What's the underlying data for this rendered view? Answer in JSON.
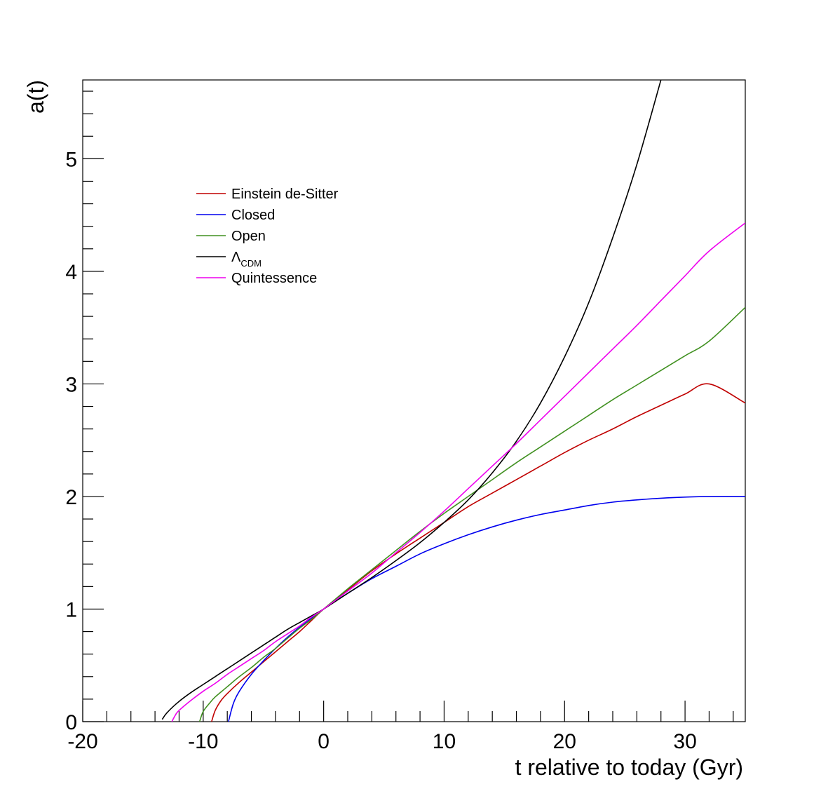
{
  "chart_data": {
    "type": "line",
    "xlabel": "t relative to today (Gyr)",
    "ylabel": "a(t)",
    "xlim": [
      -20,
      35
    ],
    "ylim": [
      0,
      5.7
    ],
    "x_ticks": [
      -20,
      -10,
      0,
      10,
      20,
      30
    ],
    "x_tick_labels": [
      "-20",
      "-10",
      "0",
      "10",
      "20",
      "30"
    ],
    "y_ticks": [
      0,
      1,
      2,
      3,
      4,
      5
    ],
    "y_tick_labels": [
      "0",
      "1",
      "2",
      "3",
      "4",
      "5"
    ],
    "grid": false,
    "legend_position": "top-left",
    "series": [
      {
        "name": "Einstein de-Sitter",
        "color": "#c00000",
        "x": [
          -9.3,
          -9.0,
          -8.5,
          -8.0,
          -7.0,
          -6.0,
          -5.0,
          -4.0,
          -3.0,
          -2.0,
          -1.0,
          0,
          2,
          4,
          6,
          8,
          10,
          12,
          14,
          16,
          18,
          20,
          22,
          24,
          26,
          28,
          30,
          32,
          35
        ],
        "y": [
          0.0,
          0.1,
          0.19,
          0.25,
          0.35,
          0.44,
          0.53,
          0.62,
          0.71,
          0.8,
          0.9,
          1.0,
          1.17,
          1.34,
          1.49,
          1.63,
          1.77,
          1.91,
          2.03,
          2.15,
          2.27,
          2.39,
          2.5,
          2.6,
          2.71,
          2.81,
          2.91,
          3.0,
          2.83
        ]
      },
      {
        "name": "Closed",
        "color": "#0000ee",
        "x": [
          -7.9,
          -7.5,
          -7.0,
          -6.0,
          -5.0,
          -4.0,
          -3.0,
          -2.0,
          -1.0,
          0,
          2,
          4,
          6,
          8,
          10,
          12,
          14,
          16,
          18,
          20,
          22,
          24,
          26,
          28,
          30,
          32,
          35
        ],
        "y": [
          0.0,
          0.16,
          0.27,
          0.42,
          0.54,
          0.65,
          0.75,
          0.84,
          0.92,
          1.0,
          1.14,
          1.27,
          1.38,
          1.49,
          1.58,
          1.66,
          1.73,
          1.79,
          1.84,
          1.88,
          1.92,
          1.95,
          1.97,
          1.985,
          1.995,
          2.0,
          2.0
        ]
      },
      {
        "name": "Open",
        "color": "#409020",
        "x": [
          -10.3,
          -10.0,
          -9.5,
          -9.0,
          -8.0,
          -7.0,
          -6.0,
          -5.0,
          -4.0,
          -3.0,
          -2.0,
          -1.0,
          0,
          2,
          4,
          6,
          8,
          10,
          12,
          14,
          16,
          18,
          20,
          22,
          24,
          26,
          28,
          30,
          32,
          35
        ],
        "y": [
          0.0,
          0.09,
          0.16,
          0.22,
          0.31,
          0.4,
          0.48,
          0.57,
          0.65,
          0.74,
          0.83,
          0.91,
          1.0,
          1.18,
          1.35,
          1.52,
          1.69,
          1.85,
          2.0,
          2.15,
          2.3,
          2.44,
          2.58,
          2.72,
          2.86,
          2.99,
          3.12,
          3.25,
          3.38,
          3.68
        ]
      },
      {
        "name": "ΛCDM",
        "color": "#000000",
        "x": [
          -13.4,
          -13.0,
          -12.0,
          -11.0,
          -10.0,
          -9.0,
          -8.0,
          -7.0,
          -6.0,
          -5.0,
          -4.0,
          -3.0,
          -2.0,
          -1.0,
          0,
          2,
          4,
          6,
          8,
          10,
          12,
          14,
          16,
          18,
          20,
          22,
          24,
          26,
          28
        ],
        "y": [
          0.02,
          0.08,
          0.18,
          0.26,
          0.33,
          0.4,
          0.47,
          0.54,
          0.61,
          0.68,
          0.75,
          0.82,
          0.88,
          0.94,
          1.0,
          1.14,
          1.28,
          1.43,
          1.59,
          1.77,
          1.97,
          2.21,
          2.49,
          2.83,
          3.24,
          3.72,
          4.3,
          4.95,
          5.7
        ]
      },
      {
        "name": "Quintessence",
        "color": "#ee00ee",
        "x": [
          -12.6,
          -12.3,
          -12.0,
          -11.0,
          -10.0,
          -9.0,
          -8.0,
          -7.0,
          -6.0,
          -5.0,
          -4.0,
          -3.0,
          -2.0,
          -1.0,
          0,
          2,
          4,
          6,
          8,
          10,
          12,
          14,
          16,
          18,
          20,
          22,
          24,
          26,
          28,
          30,
          32,
          35
        ],
        "y": [
          0.0,
          0.06,
          0.1,
          0.19,
          0.27,
          0.34,
          0.42,
          0.49,
          0.56,
          0.63,
          0.71,
          0.78,
          0.85,
          0.93,
          1.0,
          1.16,
          1.32,
          1.5,
          1.68,
          1.87,
          2.07,
          2.27,
          2.47,
          2.68,
          2.89,
          3.1,
          3.31,
          3.52,
          3.74,
          3.96,
          4.18,
          4.43
        ]
      }
    ]
  },
  "legend": {
    "entries": [
      {
        "label": "Einstein de-Sitter",
        "color": "#c00000"
      },
      {
        "label": "Closed",
        "color": "#0000ee"
      },
      {
        "label": "Open",
        "color": "#409020"
      },
      {
        "label": "Λ",
        "sub": "CDM",
        "color": "#000000"
      },
      {
        "label": "Quintessence",
        "color": "#ee00ee"
      }
    ]
  }
}
